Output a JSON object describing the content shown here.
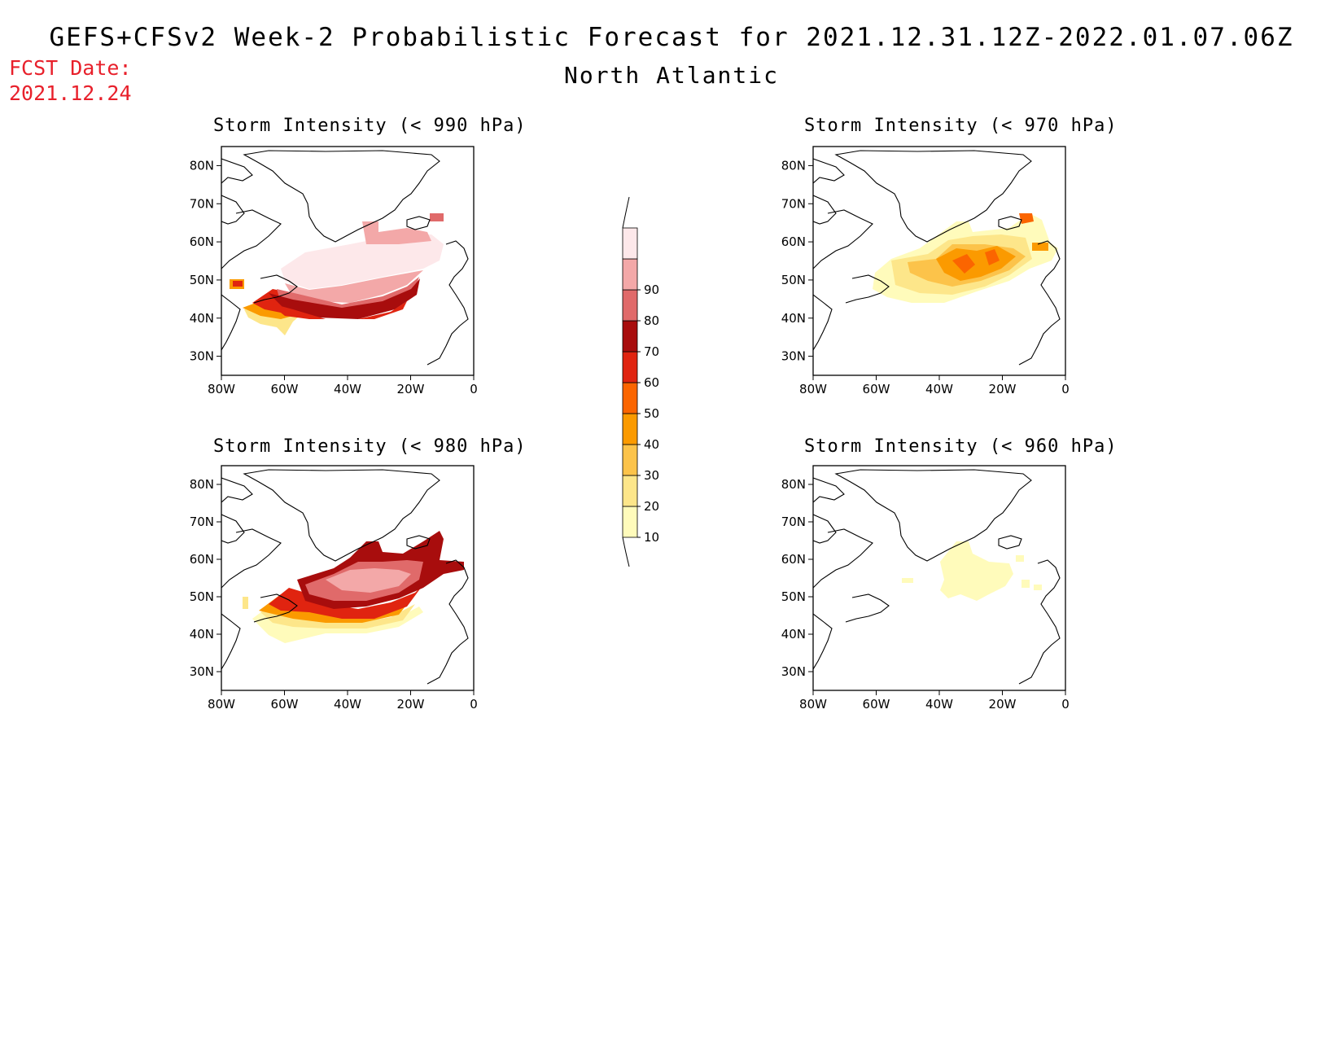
{
  "header": {
    "title": "GEFS+CFSv2 Week-2 Probabilistic Forecast for 2021.12.31.12Z-2022.01.07.06Z",
    "subtitle": "North Atlantic",
    "fcst_label": "FCST Date:",
    "fcst_date": "2021.12.24"
  },
  "panels": [
    {
      "title": "Storm Intensity (< 990 hPa)"
    },
    {
      "title": "Storm Intensity (< 970 hPa)"
    },
    {
      "title": "Storm Intensity (< 980 hPa)"
    },
    {
      "title": "Storm Intensity (< 960 hPa)"
    }
  ],
  "axes": {
    "lat_labels": [
      "80N",
      "70N",
      "60N",
      "50N",
      "40N",
      "30N"
    ],
    "lon_labels": [
      "80W",
      "60W",
      "40W",
      "20W",
      "0"
    ],
    "lat_values": [
      80,
      70,
      60,
      50,
      40,
      30
    ],
    "lon_values": [
      -80,
      -60,
      -40,
      -20,
      0
    ],
    "lat_range": [
      25,
      85
    ],
    "lon_range": [
      -80,
      0
    ]
  },
  "colorbar": {
    "labels": [
      "10",
      "20",
      "30",
      "40",
      "50",
      "60",
      "70",
      "80",
      "90"
    ],
    "colors": [
      "#fffbbb",
      "#fde68a",
      "#fcc34a",
      "#fb9a00",
      "#fb6500",
      "#e02410",
      "#a80d0d",
      "#e06a6a",
      "#f3a8a8",
      "#fde8ea"
    ]
  }
}
